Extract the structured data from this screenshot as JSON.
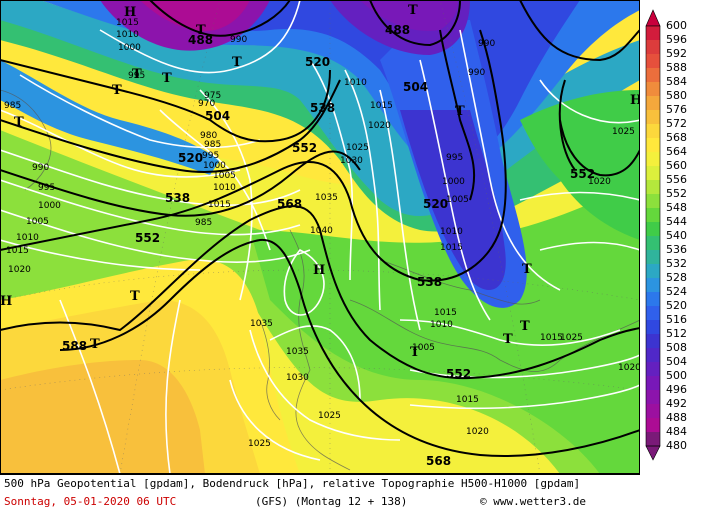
{
  "legend": {
    "levels": [
      "600",
      "596",
      "592",
      "588",
      "584",
      "580",
      "576",
      "572",
      "568",
      "564",
      "560",
      "556",
      "552",
      "548",
      "544",
      "540",
      "536",
      "532",
      "528",
      "524",
      "520",
      "516",
      "512",
      "508",
      "504",
      "500",
      "496",
      "492",
      "488",
      "484",
      "480"
    ],
    "colors": [
      "#c8003c",
      "#d21c3c",
      "#dc3c3c",
      "#e6503c",
      "#ec6e3c",
      "#f08c3c",
      "#f4a83c",
      "#f8c03c",
      "#fcd83c",
      "#ffe83c",
      "#f4f03c",
      "#dcf03c",
      "#b4e83c",
      "#8ce03c",
      "#64d83c",
      "#40cc48",
      "#34c072",
      "#30b49c",
      "#2ca8c4",
      "#2c94e0",
      "#2c78ec",
      "#3060ec",
      "#3048e0",
      "#3c34d0",
      "#5028c8",
      "#6420c0",
      "#7818b8",
      "#8c14ac",
      "#9c10a0",
      "#ac0c94",
      "#7a1a78"
    ]
  },
  "map": {
    "geopotential_labels": [
      "488",
      "520",
      "504",
      "520",
      "538",
      "552",
      "538",
      "552",
      "504",
      "488",
      "520",
      "568",
      "552",
      "538",
      "552",
      "588",
      "568"
    ],
    "pressure_labels": [
      "1015",
      "1010",
      "1000",
      "995",
      "985",
      "990",
      "995",
      "1000",
      "1005",
      "1010",
      "1015",
      "1020",
      "975",
      "970",
      "980",
      "985",
      "990",
      "995",
      "1000",
      "1005",
      "1010",
      "1015",
      "985",
      "1010",
      "1015",
      "1020",
      "1025",
      "1030",
      "1040",
      "1035",
      "1035",
      "1035",
      "1030",
      "1025",
      "1025",
      "1015",
      "1020",
      "1025",
      "990",
      "990",
      "995",
      "1000",
      "1005",
      "1010",
      "1015",
      "1010",
      "1005",
      "1015",
      "1020",
      "1025",
      "1020",
      "1015"
    ],
    "low_symbol": "T",
    "high_symbol": "H"
  },
  "caption": {
    "line1": "500 hPa Geopotential [gpdam], Bodendruck [hPa], relative Topographie H500-H1000 [gpdam]",
    "date": "Sonntag, 05-01-2020  06 UTC",
    "model": "(GFS)  (Montag 12 + 138)",
    "site": "© www.wetter3.de"
  }
}
